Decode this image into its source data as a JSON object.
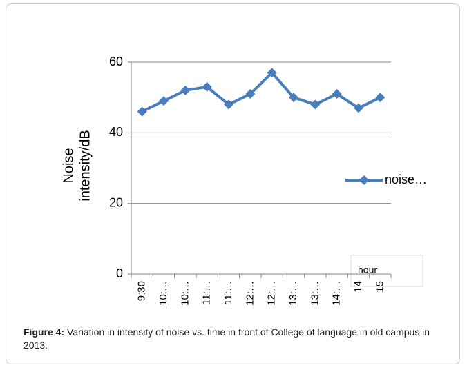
{
  "chart_data": {
    "type": "line",
    "y_label": [
      "Noise",
      "intensity/dB"
    ],
    "x_label": "hour",
    "categories": [
      "9:30",
      "10:…",
      "10:…",
      "11:…",
      "11:…",
      "12:…",
      "12:…",
      "13:…",
      "13:…",
      "14:…",
      "14",
      "15"
    ],
    "series": [
      {
        "name": "noise…",
        "color": "#4a7ebb",
        "values": [
          46,
          49,
          52,
          53,
          48,
          51,
          57,
          50,
          48,
          51,
          47,
          50
        ]
      }
    ],
    "ylim": [
      0,
      60
    ],
    "yticks": [
      0,
      20,
      40,
      60
    ],
    "grid": true,
    "legend": "right"
  },
  "caption": {
    "label": "Figure 4:",
    "text": " Variation in intensity of noise vs. time in front of College of language in old campus in 2013."
  }
}
